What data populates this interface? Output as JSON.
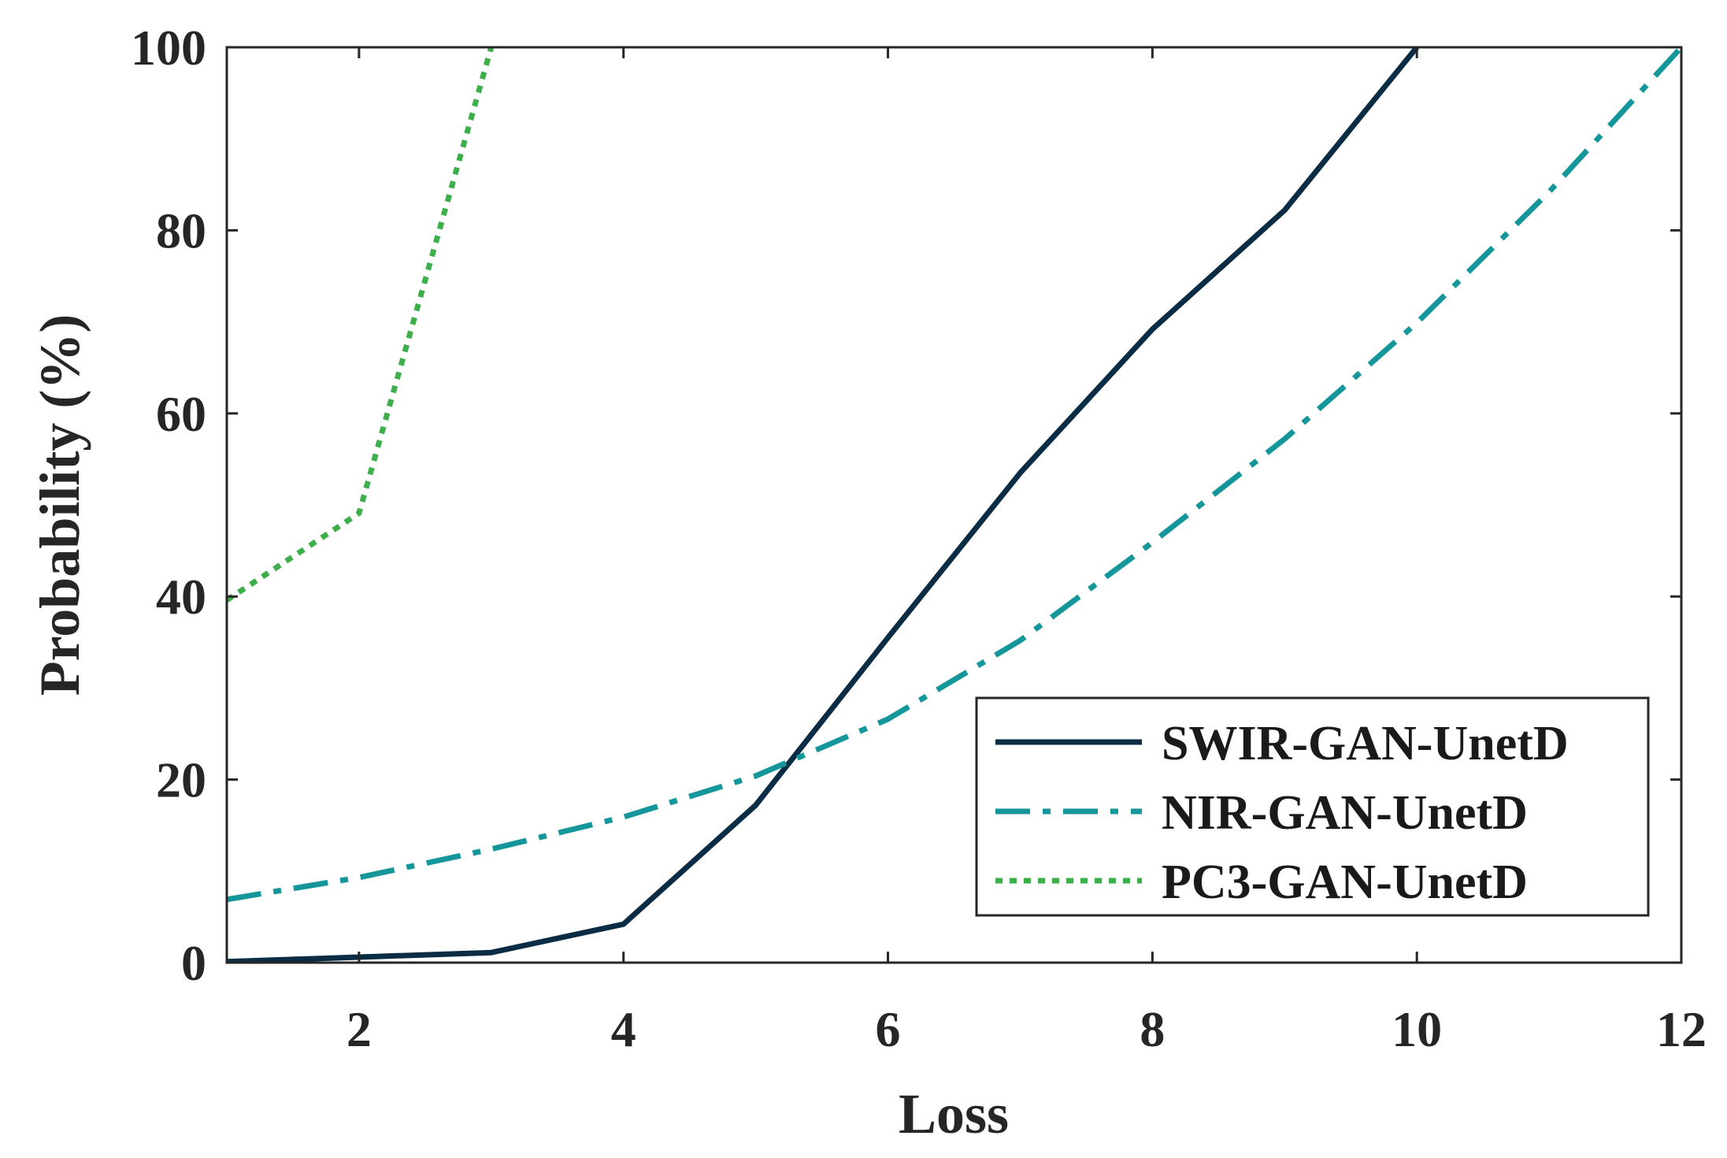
{
  "chart_data": {
    "type": "line",
    "title": "",
    "xlabel": "Loss",
    "ylabel": "Probability (%)",
    "xlim": [
      1,
      12
    ],
    "ylim": [
      0,
      100
    ],
    "xticks": [
      2,
      4,
      6,
      8,
      10,
      12
    ],
    "yticks": [
      0,
      20,
      40,
      60,
      80,
      100
    ],
    "grid": false,
    "legend_position": "bottom-right",
    "series": [
      {
        "name": "SWIR-GAN-UnetD",
        "color": "#0a2d45",
        "style": "solid",
        "x": [
          1,
          2,
          3,
          4,
          5,
          6,
          7,
          8,
          9,
          10
        ],
        "y": [
          0.1,
          0.6,
          1.1,
          4.2,
          17.2,
          35.5,
          53.5,
          69.2,
          82.2,
          100
        ]
      },
      {
        "name": "NIR-GAN-UnetD",
        "color": "#14969a",
        "style": "dashdot",
        "x": [
          1,
          2,
          3,
          4,
          5,
          6,
          7,
          8,
          9,
          10,
          11,
          12
        ],
        "y": [
          6.9,
          9.3,
          12.4,
          15.9,
          20.4,
          26.6,
          35.2,
          45.9,
          57.2,
          69.9,
          84.2,
          100
        ]
      },
      {
        "name": "PC3-GAN-UnetD",
        "color": "#3daf4a",
        "style": "dotted",
        "x": [
          1,
          2,
          3
        ],
        "y": [
          39.6,
          49.1,
          100
        ]
      }
    ]
  }
}
